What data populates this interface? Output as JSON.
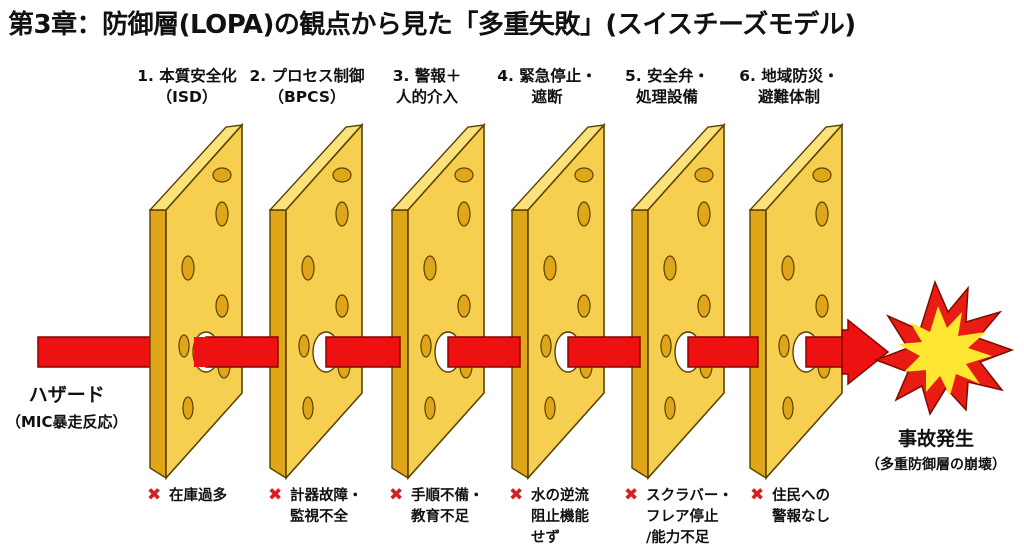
{
  "title": "第3章：防御層(LOPA)の観点から見た「多重失敗」(スイスチーズモデル)",
  "layers": [
    {
      "line1": "1. 本質安全化",
      "line2": "（ISD）"
    },
    {
      "line1": "2. プロセス制御",
      "line2": "（BPCS）"
    },
    {
      "line1": "3. 警報＋",
      "line2": "人的介入"
    },
    {
      "line1": "4. 緊急停止・",
      "line2": "遮断"
    },
    {
      "line1": "5. 安全弁・",
      "line2": "処理設備"
    },
    {
      "line1": "6. 地域防災・",
      "line2": "避難体制"
    }
  ],
  "hazard": {
    "label": "ハザード",
    "sub": "（MIC暴走反応）"
  },
  "incident": {
    "label": "事故発生",
    "sub": "（多重防御層の崩壊）"
  },
  "failures": [
    {
      "mark": "✖",
      "lines": [
        "在庫過多"
      ]
    },
    {
      "mark": "✖",
      "lines": [
        "計器故障・",
        "監視不全"
      ]
    },
    {
      "mark": "✖",
      "lines": [
        "手順不備・",
        "教育不足"
      ]
    },
    {
      "mark": "✖",
      "lines": [
        "水の逆流",
        "阻止機能",
        "せず"
      ]
    },
    {
      "mark": "✖",
      "lines": [
        "スクラバー・",
        "フレア停止",
        "/能力不足"
      ]
    },
    {
      "mark": "✖",
      "lines": [
        "住民への",
        "警報なし"
      ]
    }
  ],
  "colors": {
    "cheese_front": "#f7cf50",
    "cheese_side": "#e0a61a",
    "cheese_top": "#fbe27a",
    "arrow": "#ee1111",
    "burst_outer": "#e81c12",
    "burst_inner": "#ffe630",
    "fail_mark": "#d42020"
  }
}
